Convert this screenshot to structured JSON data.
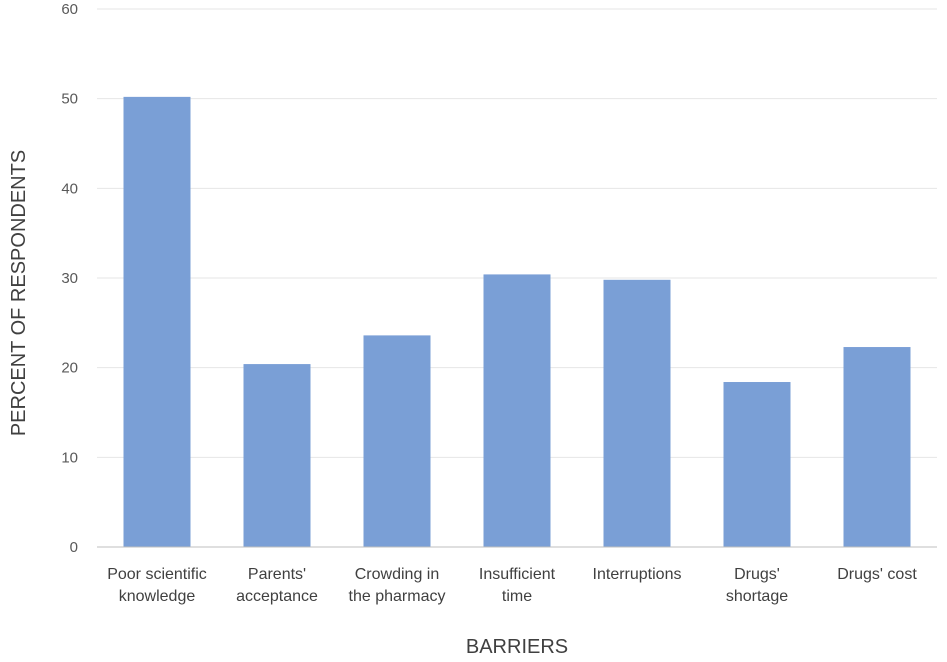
{
  "chart_data": {
    "type": "bar",
    "title": "",
    "xlabel": "BARRIERS",
    "ylabel": "PERCENT OF RESPONDENTS",
    "ylim": [
      0,
      60
    ],
    "yticks": [
      0,
      10,
      20,
      30,
      40,
      50,
      60
    ],
    "grid": true,
    "legend": "none",
    "bar_color": "#7A9FD6",
    "categories": [
      [
        "Poor scientific",
        "knowledge"
      ],
      [
        "Parents'",
        "acceptance"
      ],
      [
        "Crowding in",
        "the pharmacy"
      ],
      [
        "Insufficient",
        "time"
      ],
      [
        "Interruptions"
      ],
      [
        "Drugs'",
        "shortage"
      ],
      [
        "Drugs' cost"
      ]
    ],
    "values": [
      50.2,
      20.4,
      23.6,
      30.4,
      29.8,
      18.4,
      22.3
    ]
  }
}
